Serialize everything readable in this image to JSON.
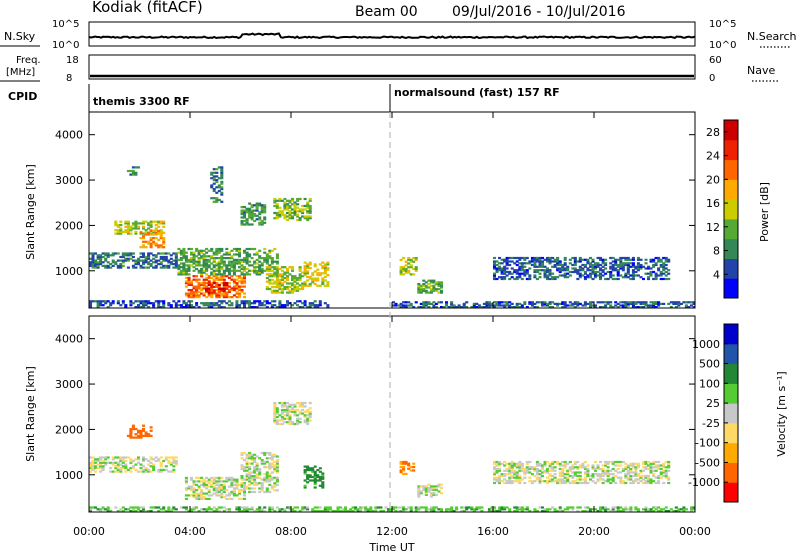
{
  "header": {
    "title": "Kodiak (fitACF)",
    "beam": "Beam 00",
    "date_range": "09/Jul/2016 - 10/Jul/2016"
  },
  "top_panels": {
    "nsky_label": "N.Sky",
    "nsearch_label": "N.Search",
    "nsky_ticks": [
      "10^5",
      "10^0"
    ],
    "nsearch_ticks": [
      "10^5",
      "10^0"
    ],
    "freq_label_1": "Freq.",
    "freq_label_2": "[MHz]",
    "freq_ticks": [
      "18",
      "8"
    ],
    "nave_label": "Nave",
    "nave_ticks": [
      "60",
      "0"
    ],
    "cpid_label": "CPID",
    "cpid_segments": [
      {
        "label": "themis 3300 RF",
        "start_hour": 0
      },
      {
        "label": "normalsound (fast) 157 RF",
        "start_hour": 12
      }
    ]
  },
  "colors": {
    "power_scale": [
      "#0000ff",
      "#2244aa",
      "#338855",
      "#55aa33",
      "#cccc00",
      "#ffaa00",
      "#ff6600",
      "#ee2200",
      "#cc0000"
    ],
    "velocity_scale": [
      "#ff0000",
      "#ff6600",
      "#ffaa00",
      "#ffd966",
      "#c8c8c8",
      "#55cc33",
      "#228833",
      "#2255aa",
      "#0000cc"
    ],
    "dashed_line": "#bbbbbb"
  },
  "chart_data": [
    {
      "type": "heatmap",
      "name": "power",
      "ylabel": "Slant Range [km]",
      "yticks": [
        "1000",
        "2000",
        "3000",
        "4000"
      ],
      "ylim": [
        180,
        4500
      ],
      "colorbar_label": "Power [dB]",
      "colorbar_ticks": [
        "4",
        "8",
        "12",
        "16",
        "20",
        "24",
        "28"
      ],
      "colorbar_range": [
        0,
        30
      ],
      "echo_regions": [
        {
          "t0": 0.0,
          "t1": 9.5,
          "r0": 180,
          "r1": 350,
          "v": 4
        },
        {
          "t0": 0.0,
          "t1": 3.5,
          "r0": 1050,
          "r1": 1400,
          "v": 6
        },
        {
          "t0": 1.0,
          "t1": 3.0,
          "r0": 1800,
          "r1": 2100,
          "v": 14
        },
        {
          "t0": 2.0,
          "t1": 3.0,
          "r0": 1500,
          "r1": 1900,
          "v": 20
        },
        {
          "t0": 3.8,
          "t1": 6.2,
          "r0": 400,
          "r1": 900,
          "v": 22
        },
        {
          "t0": 4.5,
          "t1": 5.5,
          "r0": 500,
          "r1": 750,
          "v": 27
        },
        {
          "t0": 3.5,
          "t1": 7.5,
          "r0": 900,
          "r1": 1500,
          "v": 10
        },
        {
          "t0": 6.0,
          "t1": 7.0,
          "r0": 2000,
          "r1": 2500,
          "v": 9
        },
        {
          "t0": 7.0,
          "t1": 8.5,
          "r0": 500,
          "r1": 1100,
          "v": 14
        },
        {
          "t0": 7.3,
          "t1": 8.8,
          "r0": 2100,
          "r1": 2600,
          "v": 12
        },
        {
          "t0": 8.5,
          "t1": 9.5,
          "r0": 650,
          "r1": 1200,
          "v": 16
        },
        {
          "t0": 12.3,
          "t1": 13.0,
          "r0": 900,
          "r1": 1300,
          "v": 14
        },
        {
          "t0": 13.0,
          "t1": 14.0,
          "r0": 500,
          "r1": 800,
          "v": 10
        },
        {
          "t0": 12.0,
          "t1": 24.0,
          "r0": 180,
          "r1": 320,
          "v": 5
        },
        {
          "t0": 16.0,
          "t1": 23.0,
          "r0": 800,
          "r1": 1300,
          "v": 5
        },
        {
          "t0": 1.5,
          "t1": 2.0,
          "r0": 3100,
          "r1": 3300,
          "v": 8
        },
        {
          "t0": 4.8,
          "t1": 5.3,
          "r0": 2500,
          "r1": 3300,
          "v": 7
        }
      ]
    },
    {
      "type": "heatmap",
      "name": "velocity",
      "ylabel": "Slant Range [km]",
      "yticks": [
        "1000",
        "2000",
        "3000",
        "4000"
      ],
      "ylim": [
        180,
        4500
      ],
      "colorbar_label": "Velocity [m s⁻¹]",
      "colorbar_ticks": [
        "-1000",
        "-500",
        "-100",
        "-25",
        "25",
        "100",
        "500",
        "1000"
      ],
      "echo_regions": [
        {
          "t0": 0.0,
          "t1": 24.0,
          "r0": 180,
          "r1": 300,
          "v": 60
        },
        {
          "t0": 0.0,
          "t1": 3.5,
          "r0": 1050,
          "r1": 1400,
          "v": 0
        },
        {
          "t0": 1.5,
          "t1": 2.5,
          "r0": 1800,
          "r1": 2100,
          "v": -600
        },
        {
          "t0": 3.8,
          "t1": 6.2,
          "r0": 450,
          "r1": 950,
          "v": 0
        },
        {
          "t0": 6.0,
          "t1": 7.5,
          "r0": 600,
          "r1": 1500,
          "v": 0
        },
        {
          "t0": 7.3,
          "t1": 8.8,
          "r0": 2100,
          "r1": 2600,
          "v": 0
        },
        {
          "t0": 8.5,
          "t1": 9.3,
          "r0": 700,
          "r1": 1200,
          "v": 150
        },
        {
          "t0": 12.3,
          "t1": 12.9,
          "r0": 1000,
          "r1": 1300,
          "v": -500
        },
        {
          "t0": 13.0,
          "t1": 14.0,
          "r0": 500,
          "r1": 800,
          "v": 0
        },
        {
          "t0": 16.0,
          "t1": 23.0,
          "r0": 800,
          "r1": 1300,
          "v": 0
        }
      ]
    }
  ],
  "x_axis": {
    "label": "Time UT",
    "ticks": [
      "00:00",
      "04:00",
      "08:00",
      "12:00",
      "16:00",
      "20:00",
      "00:00"
    ],
    "range_hours": [
      0,
      24
    ],
    "dashed_line_hour": 12
  }
}
